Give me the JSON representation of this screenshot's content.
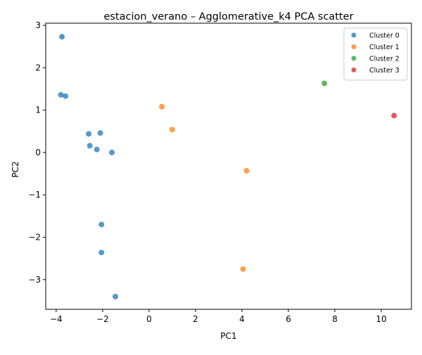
{
  "chart_data": {
    "type": "scatter",
    "title": "estacion_verano – Agglomerative_k4 PCA scatter",
    "xlabel": "PC1",
    "ylabel": "PC2",
    "xlim": [
      -4.45,
      11.3
    ],
    "ylim": [
      -3.7,
      3.05
    ],
    "xticks": [
      -4,
      -2,
      0,
      2,
      4,
      6,
      8,
      10
    ],
    "yticks": [
      -3,
      -2,
      -1,
      0,
      1,
      2,
      3
    ],
    "grid": false,
    "legend_position": "top-right",
    "series": [
      {
        "name": "Cluster 0",
        "color": "#1f77b4",
        "points": [
          {
            "x": -3.75,
            "y": 2.73
          },
          {
            "x": -3.8,
            "y": 1.36
          },
          {
            "x": -3.6,
            "y": 1.33
          },
          {
            "x": -2.6,
            "y": 0.44
          },
          {
            "x": -2.1,
            "y": 0.46
          },
          {
            "x": -2.55,
            "y": 0.16
          },
          {
            "x": -2.25,
            "y": 0.07
          },
          {
            "x": -1.6,
            "y": 0.0
          },
          {
            "x": -2.05,
            "y": -1.7
          },
          {
            "x": -2.05,
            "y": -2.36
          },
          {
            "x": -1.45,
            "y": -3.4
          }
        ]
      },
      {
        "name": "Cluster 1",
        "color": "#ff7f0e",
        "points": [
          {
            "x": 0.55,
            "y": 1.08
          },
          {
            "x": 1.0,
            "y": 0.54
          },
          {
            "x": 4.2,
            "y": -0.43
          },
          {
            "x": 4.05,
            "y": -2.75
          }
        ]
      },
      {
        "name": "Cluster 2",
        "color": "#2ca02c",
        "points": [
          {
            "x": 7.55,
            "y": 1.63
          }
        ]
      },
      {
        "name": "Cluster 3",
        "color": "#d62728",
        "points": [
          {
            "x": 10.55,
            "y": 0.87
          }
        ]
      }
    ]
  }
}
